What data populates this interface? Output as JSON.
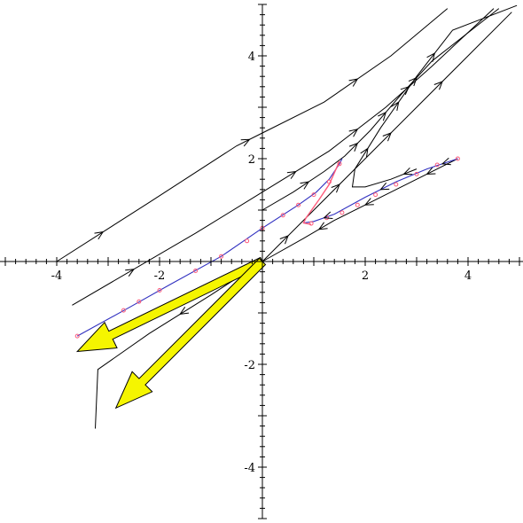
{
  "chart_data": {
    "type": "line",
    "title": "",
    "xlabel": "",
    "ylabel": "",
    "xlim": [
      -5,
      5
    ],
    "ylim": [
      -5,
      5
    ],
    "grid": false,
    "x_ticks": [
      {
        "value": -4,
        "label": "-4"
      },
      {
        "value": -2,
        "label": "-2"
      },
      {
        "value": 2,
        "label": "2"
      },
      {
        "value": 4,
        "label": "4"
      }
    ],
    "y_ticks": [
      {
        "value": 4,
        "label": "4"
      },
      {
        "value": 2,
        "label": "2"
      },
      {
        "value": -2,
        "label": "-2"
      },
      {
        "value": -4,
        "label": "-4"
      }
    ],
    "colors": {
      "trajectory": "#000000",
      "special_curve": "#3030c0",
      "markers": "#ff5a7a",
      "arrow_fill": "#f5f500",
      "arrow_stroke": "#000000"
    },
    "series": [
      {
        "points": [
          [
            -4.0,
            0.0
          ],
          [
            -2.2,
            1.15
          ],
          [
            -0.5,
            2.25
          ],
          [
            0.0,
            2.5
          ],
          [
            1.2,
            3.1
          ],
          [
            2.5,
            4.0
          ],
          [
            3.6,
            4.92
          ]
        ],
        "arrows_at": [
          1,
          3,
          5
        ]
      },
      {
        "points": [
          [
            -3.7,
            -0.85
          ],
          [
            -1.3,
            0.55
          ],
          [
            0.0,
            1.35
          ],
          [
            1.3,
            2.15
          ],
          [
            2.4,
            3.0
          ],
          [
            3.3,
            3.8
          ],
          [
            4.5,
            4.92
          ]
        ],
        "arrows_at": [
          1,
          3,
          4,
          5
        ]
      },
      {
        "points": [
          [
            0.0,
            1.0
          ],
          [
            0.6,
            1.35
          ],
          [
            1.2,
            1.75
          ],
          [
            1.6,
            2.05
          ],
          [
            2.1,
            2.55
          ],
          [
            2.7,
            3.25
          ],
          [
            3.3,
            3.9
          ],
          [
            4.6,
            4.92
          ]
        ],
        "arrows_at": [
          2,
          4,
          5,
          6
        ]
      },
      {
        "points": [
          [
            0.0,
            0.0
          ],
          [
            1.0,
            1.0
          ],
          [
            2.0,
            2.0
          ],
          [
            3.0,
            3.0
          ],
          [
            4.0,
            4.0
          ],
          [
            4.85,
            4.85
          ]
        ],
        "arrows_at": [
          1,
          2,
          3,
          4
        ]
      },
      {
        "points": [
          [
            3.0,
            1.8
          ],
          [
            2.5,
            1.6
          ],
          [
            2.0,
            1.45
          ],
          [
            1.75,
            1.45
          ],
          [
            1.8,
            1.8
          ],
          [
            2.3,
            2.6
          ],
          [
            3.0,
            3.6
          ],
          [
            3.7,
            4.5
          ],
          [
            4.95,
            4.98
          ]
        ],
        "arrows_at": [
          1,
          5,
          6,
          7
        ]
      },
      {
        "points": [
          [
            3.8,
            2.0
          ],
          [
            2.6,
            1.4
          ],
          [
            1.4,
            0.8
          ],
          [
            0.8,
            0.45
          ],
          [
            0.0,
            0.0
          ],
          [
            -1.0,
            -0.65
          ],
          [
            -2.2,
            -1.4
          ],
          [
            -3.2,
            -2.1
          ],
          [
            -3.25,
            -3.25
          ]
        ],
        "arrows_at": [
          1,
          2,
          3,
          5,
          6
        ]
      }
    ],
    "special_curve": {
      "points": [
        [
          -3.6,
          -1.45
        ],
        [
          -2.6,
          -0.9
        ],
        [
          -1.8,
          -0.45
        ],
        [
          -0.8,
          0.1
        ],
        [
          0.0,
          0.65
        ],
        [
          0.7,
          1.1
        ],
        [
          1.05,
          1.35
        ],
        [
          1.3,
          1.6
        ],
        [
          1.5,
          1.9
        ],
        [
          1.55,
          2.0
        ]
      ],
      "markers": [
        [
          -3.6,
          -1.45
        ],
        [
          -2.7,
          -0.95
        ],
        [
          -2.4,
          -0.78
        ],
        [
          -2.0,
          -0.56
        ],
        [
          -1.3,
          -0.18
        ],
        [
          -0.8,
          0.1
        ],
        [
          -0.3,
          0.4
        ],
        [
          0.0,
          0.65
        ],
        [
          0.4,
          0.9
        ],
        [
          0.7,
          1.1
        ],
        [
          1.0,
          1.3
        ],
        [
          1.3,
          1.55
        ],
        [
          1.5,
          1.9
        ]
      ]
    },
    "hook_curve": {
      "points": [
        [
          0.8,
          0.75
        ],
        [
          1.0,
          0.78
        ],
        [
          1.4,
          0.92
        ],
        [
          2.0,
          1.25
        ],
        [
          2.6,
          1.55
        ],
        [
          3.2,
          1.8
        ],
        [
          3.8,
          2.0
        ]
      ],
      "markers": [
        [
          0.95,
          0.74
        ],
        [
          1.25,
          0.85
        ],
        [
          1.55,
          0.95
        ],
        [
          1.85,
          1.1
        ],
        [
          2.2,
          1.3
        ],
        [
          2.6,
          1.5
        ],
        [
          3.0,
          1.7
        ],
        [
          3.4,
          1.88
        ],
        [
          3.8,
          2.0
        ]
      ],
      "red_segment": [
        [
          1.5,
          1.95
        ],
        [
          1.3,
          1.5
        ],
        [
          1.1,
          1.2
        ],
        [
          0.85,
          0.85
        ],
        [
          0.8,
          0.75
        ],
        [
          0.95,
          0.72
        ]
      ]
    },
    "big_arrows": [
      {
        "from": [
          0.0,
          0.0
        ],
        "to": [
          -3.6,
          -1.75
        ]
      },
      {
        "from": [
          0.0,
          0.0
        ],
        "to": [
          -2.85,
          -2.85
        ]
      }
    ]
  }
}
